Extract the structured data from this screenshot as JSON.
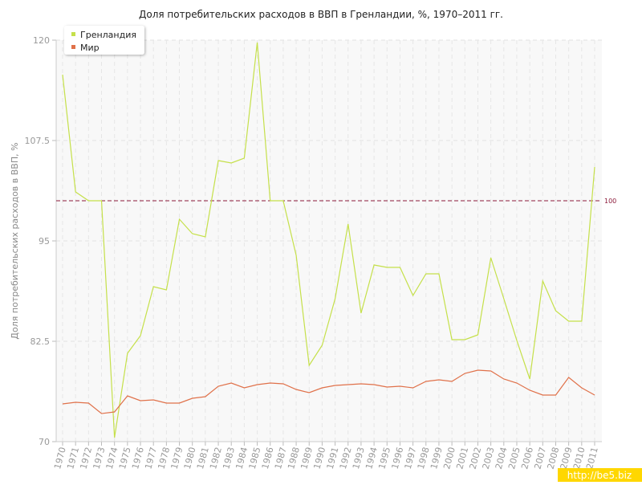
{
  "chart_data": {
    "type": "line",
    "title": "Доля потребительских расходов в ВВП в Гренландии, %, 1970–2011 гг.",
    "y_label": "Доля потребительских расходов в ВВП, %",
    "categories": [
      "1970",
      "1971",
      "1972",
      "1973",
      "1974",
      "1975",
      "1976",
      "1977",
      "1978",
      "1979",
      "1980",
      "1981",
      "1982",
      "1983",
      "1984",
      "1985",
      "1986",
      "1987",
      "1988",
      "1989",
      "1990",
      "1991",
      "1992",
      "1993",
      "1994",
      "1995",
      "1996",
      "1997",
      "1998",
      "1999",
      "2000",
      "2001",
      "2002",
      "2003",
      "2004",
      "2005",
      "2006",
      "2007",
      "2008",
      "2009",
      "2010",
      "2011"
    ],
    "series": [
      {
        "name": "Гренландия",
        "color": "#c5e04a",
        "values": [
          115.7,
          101.1,
          100,
          100,
          70.5,
          81,
          83.2,
          89.3,
          88.9,
          97.7,
          95.9,
          95.5,
          105,
          104.7,
          105.3,
          119.7,
          100,
          100,
          93.2,
          79.5,
          82,
          87.8,
          97.1,
          86,
          92,
          91.7,
          91.7,
          88.2,
          90.9,
          90.9,
          82.7,
          82.7,
          83.3,
          92.9,
          87.8,
          82.6,
          77.8,
          90,
          86.3,
          85,
          85,
          104.2
        ]
      },
      {
        "name": "Мир",
        "color": "#e0714a",
        "values": [
          74.7,
          74.9,
          74.8,
          73.5,
          73.7,
          75.7,
          75.1,
          75.2,
          74.8,
          74.8,
          75.4,
          75.6,
          76.9,
          77.3,
          76.7,
          77.1,
          77.3,
          77.2,
          76.5,
          76.1,
          76.7,
          77,
          77.1,
          77.2,
          77.1,
          76.8,
          76.9,
          76.7,
          77.5,
          77.7,
          77.5,
          78.5,
          78.9,
          78.8,
          77.8,
          77.3,
          76.4,
          75.8,
          75.8,
          78,
          76.7,
          75.8
        ]
      }
    ],
    "ylim": [
      70,
      120
    ],
    "yticks": [
      70,
      82.5,
      95,
      107.5,
      120
    ],
    "grid": true,
    "reference_line": 100,
    "reference_color": "#8b1a3a",
    "legend": "top-left",
    "watermark": "http://be5.biz"
  }
}
